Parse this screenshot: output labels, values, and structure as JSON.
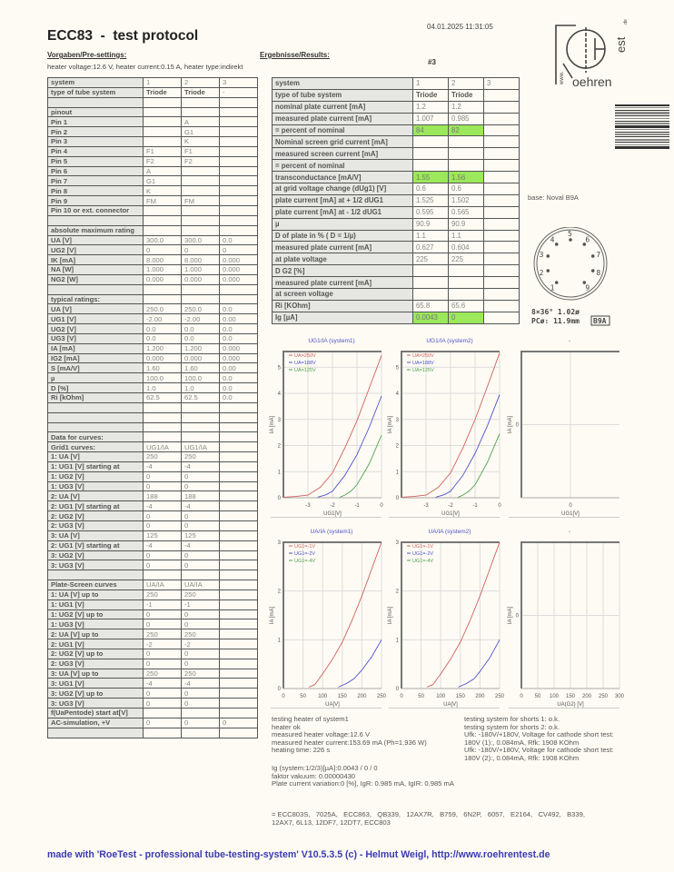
{
  "header": {
    "title": "ECC83  -  test protocol",
    "datetime": "04.01.2025 11:31:05",
    "presettings_label": "Vorgaben/Pre-settings:",
    "results_label": "Ergebnisse/Results:",
    "test_number": "#3",
    "heater_info": "heater voltage:12.6 V, heater current:0.15 A, heater type:indirekt"
  },
  "logo": {
    "text": "www.Roehrentest.de"
  },
  "base": "base: Noval B9A",
  "socket": {
    "pins": [
      "1",
      "2",
      "3",
      "4",
      "5",
      "6",
      "7",
      "8",
      "9"
    ],
    "spec1": "8×36°  1.02ø",
    "spec2": "PCø: 11.9mm",
    "code": "B9A"
  },
  "colors": {
    "highlight": "#9be85a",
    "footer": "#3a3ab0",
    "chart_title": "#5050c8"
  },
  "presettings_table": [
    [
      "system",
      "1",
      "2",
      "3"
    ],
    [
      "type of tube system",
      "Triode",
      "Triode",
      "-"
    ],
    [
      "",
      "",
      "",
      ""
    ],
    [
      "pinout",
      "",
      "",
      ""
    ],
    [
      "Pin 1",
      "",
      "A",
      ""
    ],
    [
      "Pin 2",
      "",
      "G1",
      ""
    ],
    [
      "Pin 3",
      "",
      "K",
      ""
    ],
    [
      "Pin 4",
      "F1",
      "F1",
      ""
    ],
    [
      "Pin 5",
      "F2",
      "F2",
      ""
    ],
    [
      "Pin 6",
      "A",
      "",
      ""
    ],
    [
      "Pin 7",
      "G1",
      "",
      ""
    ],
    [
      "Pin 8",
      "K",
      "",
      ""
    ],
    [
      "Pin 9",
      "FM",
      "FM",
      ""
    ],
    [
      "Pin 10 or ext. connector",
      "",
      "",
      ""
    ],
    [
      "",
      "",
      "",
      ""
    ],
    [
      "absolute maximum rating",
      "",
      "",
      ""
    ],
    [
      "UA [V]",
      "300.0",
      "300.0",
      "0.0"
    ],
    [
      "UG2 [V]",
      "0",
      "0",
      "0"
    ],
    [
      "IK [mA]",
      "8.000",
      "8.000",
      "0.000"
    ],
    [
      "NA [W]",
      "1.000",
      "1.000",
      "0.000"
    ],
    [
      "NG2 [W]",
      "0.000",
      "0.000",
      "0.000"
    ],
    [
      "",
      "",
      "",
      ""
    ],
    [
      "typical ratings:",
      "",
      "",
      ""
    ],
    [
      "UA [V]",
      "250.0",
      "250.0",
      "0.0"
    ],
    [
      "UG1 [V]",
      "-2.00",
      "-2.00",
      "0.00"
    ],
    [
      "UG2 [V]",
      "0.0",
      "0.0",
      "0.0"
    ],
    [
      "UG3 [V]",
      "0.0",
      "0.0",
      "0.0"
    ],
    [
      "IA [mA]",
      "1.200",
      "1.200",
      "0.000"
    ],
    [
      "IG2 [mA]",
      "0.000",
      "0.000",
      "0.000"
    ],
    [
      "S [mA/V]",
      "1.60",
      "1.60",
      "0.00"
    ],
    [
      "µ",
      "100.0",
      "100.0",
      "0.0"
    ],
    [
      "D [%]",
      "1.0",
      "1.0",
      "0.0"
    ],
    [
      "Ri [kOhm]",
      "62.5",
      "62.5",
      "0.0"
    ],
    [
      "",
      "",
      "",
      ""
    ],
    [
      "",
      "",
      "",
      ""
    ],
    [
      "",
      "",
      "",
      ""
    ],
    [
      "Data for curves:",
      "",
      "",
      ""
    ],
    [
      "Grid1 curves:",
      "UG1/IA",
      "UG1/IA",
      ""
    ],
    [
      "1: UA [V]",
      "250",
      "250",
      ""
    ],
    [
      "1: UG1 [V] starting at",
      "-4",
      "-4",
      ""
    ],
    [
      "1: UG2 [V]",
      "0",
      "0",
      ""
    ],
    [
      "1: UG3 [V]",
      "0",
      "0",
      ""
    ],
    [
      "2: UA [V]",
      "188",
      "188",
      ""
    ],
    [
      "2: UG1 [V] starting at",
      "-4",
      "-4",
      ""
    ],
    [
      "2: UG2 [V]",
      "0",
      "0",
      ""
    ],
    [
      "2: UG3 [V]",
      "0",
      "0",
      ""
    ],
    [
      "3: UA [V]",
      "125",
      "125",
      ""
    ],
    [
      "2: UG1 [V] starting at",
      "-4",
      "-4",
      ""
    ],
    [
      "3: UG2 [V]",
      "0",
      "0",
      ""
    ],
    [
      "3: UG3 [V]",
      "0",
      "0",
      ""
    ],
    [
      "",
      "",
      "",
      ""
    ],
    [
      "Plate-Screen curves",
      "UA/IA",
      "UA/IA",
      ""
    ],
    [
      "1: UA [V] up to",
      "250",
      "250",
      ""
    ],
    [
      "1: UG1 [V]",
      "-1",
      "-1",
      ""
    ],
    [
      "1: UG2 [V] up to",
      "0",
      "0",
      ""
    ],
    [
      "1: UG3 [V]",
      "0",
      "0",
      ""
    ],
    [
      "2: UA [V] up to",
      "250",
      "250",
      ""
    ],
    [
      "2: UG1 [V]",
      "-2",
      "-2",
      ""
    ],
    [
      "2: UG2 [V] up to",
      "0",
      "0",
      ""
    ],
    [
      "2: UG3 [V]",
      "0",
      "0",
      ""
    ],
    [
      "3: UA [V] up to",
      "250",
      "250",
      ""
    ],
    [
      "3: UG1 [V]",
      "-4",
      "-4",
      ""
    ],
    [
      "3: UG2 [V] up to",
      "0",
      "0",
      ""
    ],
    [
      "3: UG3 [V]",
      "0",
      "0",
      ""
    ],
    [
      "f(UaPentode) start at[V]",
      "",
      "",
      ""
    ],
    [
      "AC-simulation, +V",
      "0",
      "0",
      "0"
    ],
    [
      "",
      "",
      "",
      ""
    ]
  ],
  "results_table": {
    "rows": [
      [
        "system",
        "1",
        "2",
        "3"
      ],
      [
        "type of tube system",
        "Triode",
        "Triode",
        ""
      ],
      [
        "nominal plate current [mA]",
        "1.2",
        "1.2",
        ""
      ],
      [
        "measured plate current [mA]",
        "1.007",
        "0.985",
        ""
      ],
      [
        "= percent of nominal",
        "84",
        "82",
        ""
      ],
      [
        "Nominal screen grid current [mA]",
        "",
        "",
        ""
      ],
      [
        "measured screen current [mA]",
        "",
        "",
        ""
      ],
      [
        "= percent of nominal",
        "",
        "",
        ""
      ],
      [
        "transconductance [mA/V]",
        "1.55",
        "1.56",
        ""
      ],
      [
        "at grid voltage change (dUg1) [V]",
        "0.6",
        "0.6",
        ""
      ],
      [
        "plate current [mA] at + 1/2 dUG1",
        "1.525",
        "1.502",
        ""
      ],
      [
        "plate current [mA] at - 1/2 dUG1",
        "0.595",
        "0.565",
        ""
      ],
      [
        "µ",
        "90.9",
        "90.9",
        ""
      ],
      [
        "D of plate in % ( D = 1/µ)",
        "1.1",
        "1.1",
        ""
      ],
      [
        "measured plate current [mA]",
        "0.627",
        "0.604",
        ""
      ],
      [
        "at plate voltage",
        "225",
        "225",
        ""
      ],
      [
        "D G2 [%]",
        "",
        "",
        ""
      ],
      [
        "measured plate current [mA]",
        "",
        "",
        ""
      ],
      [
        "at screen voltage",
        "",
        "",
        ""
      ],
      [
        "Ri [KOhm]",
        "65.8",
        "65.6",
        ""
      ],
      [
        "Ig [µA]",
        "0.0043",
        "0",
        ""
      ]
    ],
    "highlight_rows": [
      4,
      8,
      20
    ]
  },
  "notes": {
    "heater": "testing heater of system1\nheater ok\nmeasured heater voltage:12.6 V\nmeasured heater current:153.69 mA (Ph=1.936 W)\nheating time: 226 s",
    "shorts": "testing system for shorts 1: o.k.\ntesting system for shorts 2: o.k.\nUfk: -180V/+180V, Voltage for cathode short test:\n180V (1):, 0.084mA, Rfk: 1908 KOhm\nUfk: -180V/+180V, Voltage for cathode short test:\n180V (2):, 0.084mA, Rfk: 1908 KOhm",
    "vacuum": "Ig (system:1/2/3)[µA]:0.0043 / 0 / 0\nfaktor vakuum: 0.00000430\nPlate current variation:0 [%], IgR: 0.985 mA, IgIR: 0.985 mA",
    "equivalents": "= ECC803S,   7025A,   ECC863,   QB339,   12AX7R,   B759,   6N2P,   6057,   E2164,   CV492,   B339,\n12AX7, 6L13, 12DF7, 12DT7, ECC803"
  },
  "footer": "made with 'RoeTest - professional tube-testing-system' V10.5.3.5 (c) - Helmut Weigl, http://www.roehrentest.de",
  "chart_data": [
    {
      "type": "line",
      "title": "UG1/IA (system1)",
      "xlabel": "UG1[V]",
      "ylabel": "IA [mA]",
      "xlim": [
        -4,
        0
      ],
      "ylim": [
        0,
        5.6
      ],
      "xticks": [
        "-3",
        "-2",
        "-1",
        "0"
      ],
      "yticks": [
        "0",
        "1",
        "2",
        "3",
        "4",
        "5"
      ],
      "grid": true,
      "legend": "top-left",
      "series": [
        {
          "name": "UA=250V",
          "color": "#d06060",
          "x": [
            -4,
            -3.5,
            -3,
            -2.5,
            -2,
            -1.5,
            -1,
            -0.5,
            0
          ],
          "y": [
            0.02,
            0.05,
            0.1,
            0.4,
            0.95,
            1.9,
            2.95,
            4.2,
            5.45
          ]
        },
        {
          "name": "UA=188V",
          "color": "#5050d0",
          "x": [
            -2.6,
            -2.5,
            -2.25,
            -2,
            -1.5,
            -1,
            -0.5,
            0
          ],
          "y": [
            0.02,
            0.05,
            0.12,
            0.25,
            0.85,
            1.65,
            2.7,
            3.9
          ]
        },
        {
          "name": "UA=125V",
          "color": "#50a050",
          "x": [
            -1.7,
            -1.5,
            -1.25,
            -1,
            -0.5,
            0
          ],
          "y": [
            0.02,
            0.1,
            0.25,
            0.5,
            1.3,
            2.4
          ]
        }
      ]
    },
    {
      "type": "line",
      "title": "UG1/IA (system2)",
      "xlabel": "UG1[V]",
      "ylabel": "IA [mA]",
      "xlim": [
        -4,
        0
      ],
      "ylim": [
        0,
        5.6
      ],
      "xticks": [
        "-3",
        "-2",
        "-1",
        "0"
      ],
      "yticks": [
        "0",
        "1",
        "2",
        "3",
        "4",
        "5"
      ],
      "grid": true,
      "legend": "top-left",
      "series": [
        {
          "name": "UA=250V",
          "color": "#d06060",
          "x": [
            -4,
            -3.5,
            -3,
            -2.5,
            -2,
            -1.5,
            -1,
            -0.5,
            0
          ],
          "y": [
            0.02,
            0.05,
            0.1,
            0.4,
            0.95,
            1.9,
            3.0,
            4.25,
            5.55
          ]
        },
        {
          "name": "UA=188V",
          "color": "#5050d0",
          "x": [
            -2.6,
            -2.5,
            -2.25,
            -2,
            -1.5,
            -1,
            -0.5,
            0
          ],
          "y": [
            0.02,
            0.05,
            0.12,
            0.25,
            0.85,
            1.7,
            2.75,
            3.95
          ]
        },
        {
          "name": "UA=125V",
          "color": "#50a050",
          "x": [
            -1.7,
            -1.5,
            -1.25,
            -1,
            -0.5,
            0
          ],
          "y": [
            0.02,
            0.1,
            0.25,
            0.5,
            1.35,
            2.45
          ]
        }
      ]
    },
    {
      "type": "line",
      "title": "-",
      "xlabel": "UG1[V]",
      "ylabel": "IA [mA]",
      "xlim": [
        -1,
        1
      ],
      "ylim": [
        -1,
        1
      ],
      "xticks": [
        "0"
      ],
      "yticks": [
        "0"
      ],
      "grid": true,
      "series": []
    },
    {
      "type": "line",
      "title": "UA/IA (system1)",
      "xlabel": "UA[V]",
      "ylabel": "IA [mA]",
      "xlim": [
        0,
        250
      ],
      "ylim": [
        0,
        3
      ],
      "xticks": [
        "0",
        "50",
        "100",
        "150",
        "200",
        "250"
      ],
      "yticks": [
        "0",
        "1",
        "2",
        "3"
      ],
      "grid": true,
      "legend": "top-left",
      "series": [
        {
          "name": "UG1=-1V",
          "color": "#d06060",
          "x": [
            65,
            80,
            100,
            125,
            150,
            175,
            200,
            225,
            250
          ],
          "y": [
            0.03,
            0.08,
            0.3,
            0.6,
            0.95,
            1.4,
            1.9,
            2.45,
            3.0
          ]
        },
        {
          "name": "UG1=-2V",
          "color": "#5050d0",
          "x": [
            140,
            160,
            180,
            200,
            225,
            250
          ],
          "y": [
            0.03,
            0.1,
            0.2,
            0.38,
            0.65,
            1.0
          ]
        },
        {
          "name": "UG1=-4V",
          "color": "#50a050",
          "x": [],
          "y": []
        }
      ]
    },
    {
      "type": "line",
      "title": "UA/IA (system2)",
      "xlabel": "UA[V]",
      "ylabel": "IA [mA]",
      "xlim": [
        0,
        250
      ],
      "ylim": [
        0,
        3
      ],
      "xticks": [
        "0",
        "50",
        "100",
        "150",
        "200",
        "250"
      ],
      "yticks": [
        "0",
        "1",
        "2",
        "3"
      ],
      "grid": true,
      "legend": "top-left",
      "series": [
        {
          "name": "UG1=-1V",
          "color": "#d06060",
          "x": [
            65,
            80,
            100,
            125,
            150,
            175,
            200,
            225,
            250
          ],
          "y": [
            0.03,
            0.08,
            0.3,
            0.6,
            0.95,
            1.4,
            1.9,
            2.45,
            3.0
          ]
        },
        {
          "name": "UG1=-2V",
          "color": "#5050d0",
          "x": [
            145,
            165,
            185,
            200,
            225,
            250
          ],
          "y": [
            0.03,
            0.1,
            0.2,
            0.35,
            0.63,
            1.0
          ]
        },
        {
          "name": "UG1=-4V",
          "color": "#50a050",
          "x": [],
          "y": []
        }
      ]
    },
    {
      "type": "line",
      "title": "-",
      "xlabel": "UA(G2) [V]",
      "ylabel": "IA [mA]",
      "xlim": [
        0,
        300
      ],
      "ylim": [
        -1,
        1
      ],
      "xticks": [
        "0",
        "50",
        "100",
        "150",
        "200",
        "250",
        "300"
      ],
      "yticks": [
        "0"
      ],
      "grid": true,
      "series": []
    }
  ]
}
